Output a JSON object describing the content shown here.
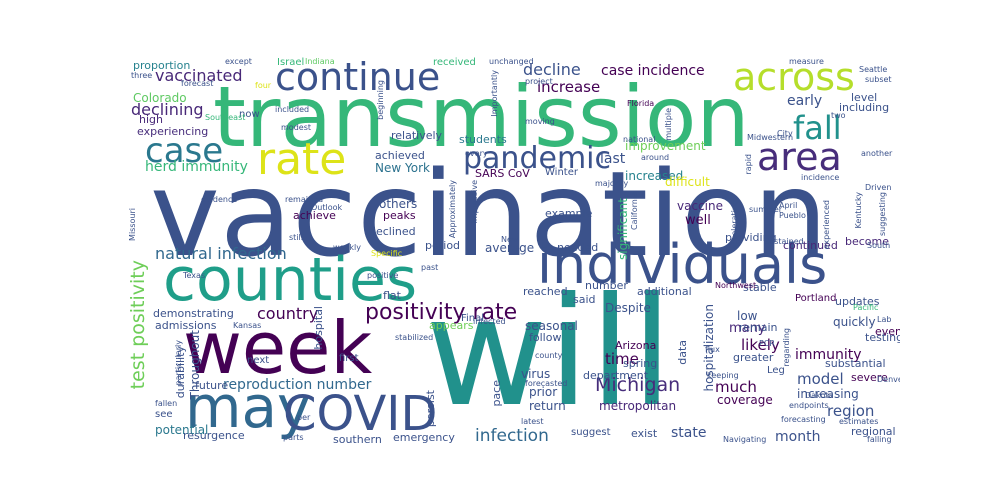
{
  "wordcloud": {
    "words": [
      "vaccination",
      "will",
      "transmission",
      "counties",
      "week",
      "individuals",
      "may",
      "COVID",
      "continue",
      "across",
      "rate",
      "pandemic",
      "area",
      "case",
      "fall",
      "positivity rate",
      "test positivity",
      "natural infection",
      "Michigan",
      "infection",
      "country",
      "reproduction number",
      "decline",
      "increase",
      "case incidence",
      "vaccinated",
      "declining",
      "herd immunity",
      "Colorado",
      "proportion",
      "high",
      "experiencing",
      "New York",
      "SARS CoV",
      "improvement",
      "increased",
      "last",
      "early",
      "level",
      "including",
      "Winter",
      "relatively",
      "students",
      "achieved",
      "vaccine",
      "well",
      "others",
      "peaks",
      "declined",
      "achieve",
      "period",
      "average",
      "needed",
      "significant",
      "providing",
      "continued",
      "become",
      "low",
      "updates",
      "quickly",
      "testing",
      "immunity",
      "likely",
      "many",
      "time",
      "much",
      "model",
      "increasing",
      "region",
      "month",
      "state",
      "exist",
      "suggest",
      "emergency",
      "resurgence",
      "potential",
      "durability",
      "future",
      "demonstrating",
      "admissions",
      "flat",
      "hospital",
      "Throughout",
      "seasonal",
      "follow",
      "appears",
      "Arizona",
      "virus",
      "prior",
      "return",
      "coverage",
      "metropolitan",
      "department",
      "hospitalization",
      "severe",
      "substantial",
      "greater",
      "remain",
      "southern",
      "regional",
      "Despite",
      "reached",
      "said",
      "number",
      "additional",
      "stable",
      "Northwest",
      "Portland",
      "Pacific",
      "Lab",
      "even",
      "Texas",
      "Kansas",
      "next",
      "first",
      "see",
      "persist",
      "pace",
      "data",
      "spring",
      "Final",
      "county",
      "Israel",
      "Indiana",
      "received",
      "unchanged",
      "project",
      "Florida",
      "Midwestern",
      "measure",
      "Seattle",
      "subset",
      "two",
      "three",
      "forecast",
      "except",
      "four",
      "now",
      "included",
      "modest",
      "moving",
      "national",
      "around",
      "rapid",
      "City",
      "incidence",
      "another",
      "Driven",
      "Southeast",
      "Importantly",
      "Approximately",
      "every",
      "majority",
      "impressive",
      "difficult",
      "example",
      "California",
      "accelerating",
      "summer",
      "experienced",
      "Kentucky",
      "April",
      "Pueblo",
      "South",
      "suggesting",
      "sustained",
      "New",
      "past",
      "positive",
      "stabilized",
      "infected",
      "particularly",
      "fallen",
      "per",
      "parts",
      "latest",
      "forecasted",
      "keeping",
      "Leg",
      "PCR",
      "flux",
      "regarding",
      "estimates",
      "Denver",
      "forecasting",
      "Navigating",
      "falling",
      "Missouri",
      "evidence",
      "remained",
      "Outlook",
      "still",
      "weekly",
      "Specific",
      "beginning",
      "multiple",
      "Dakota",
      "endpoints"
    ]
  }
}
